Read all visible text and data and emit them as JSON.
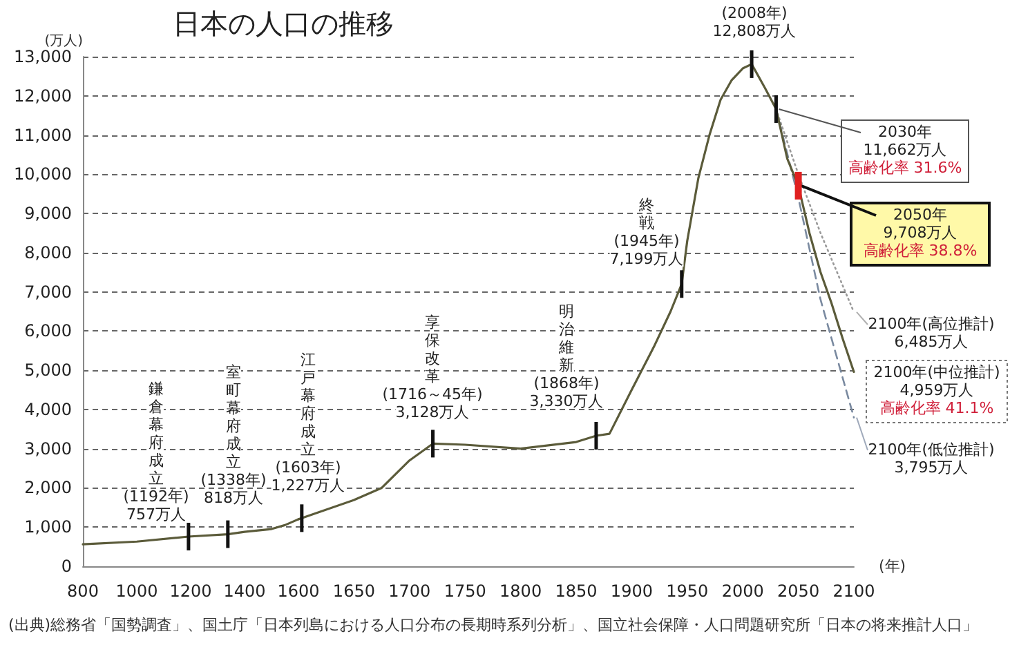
{
  "chart_data": [
    {
      "type": "line",
      "title": "日本の人口の推移",
      "ylabel": "(万人)",
      "xlim": [
        800,
        1600
      ],
      "xticks": [
        800,
        1000,
        1200,
        1400,
        1600
      ],
      "ylim": [
        0,
        13000
      ],
      "yticks": [
        0,
        {
          "value": 1000,
          "label": "1,000"
        },
        {
          "value": 2000,
          "label": "2,000"
        },
        {
          "value": 3000,
          "label": "3,000"
        },
        {
          "value": 4000,
          "label": "4,000"
        },
        {
          "value": 5000,
          "label": "5,000"
        },
        {
          "value": 6000,
          "label": "6,000"
        },
        {
          "value": 7000,
          "label": "7,000"
        },
        {
          "value": 8000,
          "label": "8,000"
        },
        {
          "value": 9000,
          "label": "9,000"
        },
        {
          "value": 10000,
          "label": "10,000"
        },
        {
          "value": 11000,
          "label": "11,000"
        },
        {
          "value": 12000,
          "label": "12,000"
        },
        {
          "value": 13000,
          "label": "13,000"
        }
      ],
      "grid": "y",
      "marker": "none",
      "series": [
        {
          "color": "#5b5b3a",
          "line_style": "solid",
          "x": [
            800,
            1000,
            1192,
            1338,
            1400,
            1500,
            1550,
            1600
          ],
          "values": [
            560,
            630,
            757,
            818,
            880,
            950,
            1050,
            1200
          ]
        }
      ],
      "annotations": [
        {
          "text": "鎌倉幕府成立\n(1192年)\n757万人",
          "x": 1192,
          "y": 757
        },
        {
          "text": "室町幕府成立\n(1338年)\n818万人",
          "x": 1338,
          "y": 818
        },
        "(出典)総務省「国勢調査」、国土庁「日本列島における人口分布の長期時系列分析」、国立社会保障・人口問題研究所「日本の将来推計人口」"
      ]
    },
    {
      "type": "line",
      "xlabel": "(年)",
      "xlim": [
        1600,
        2100
      ],
      "xticks": [
        1650,
        1700,
        1750,
        1800,
        1850,
        1900,
        1950,
        2000,
        2050,
        2100
      ],
      "ylim": [
        0,
        13000
      ],
      "yticks": [
        0,
        1000,
        2000,
        3000,
        4000,
        5000,
        6000,
        7000,
        8000,
        9000,
        10000,
        11000,
        12000,
        13000
      ],
      "tick_labels": "x",
      "grid": "y",
      "marker": "none",
      "series": [
        {
          "color": "#5b5b3a",
          "line_style": "solid",
          "x": [
            1600,
            1603,
            1650,
            1675,
            1700,
            1721,
            1750,
            1800,
            1850,
            1868,
            1880,
            1900,
            1920,
            1935,
            1945,
            1950,
            1960,
            1970,
            1980,
            1990,
            2000,
            2008,
            2020,
            2030,
            2040,
            2050,
            2060,
            2070,
            2080,
            2090,
            2100
          ],
          "values": [
            1200,
            1227,
            1690,
            2000,
            2700,
            3128,
            3100,
            3000,
            3170,
            3330,
            3380,
            4500,
            5600,
            6500,
            7199,
            8300,
            9900,
            11000,
            11900,
            12400,
            12700,
            12808,
            12200,
            11662,
            10400,
            9708,
            8500,
            7500,
            6700,
            5800,
            4959
          ]
        },
        {
          "color": "#9a9a9a",
          "line_style": "dotted",
          "x": [
            2030,
            2050,
            2070,
            2100
          ],
          "values": [
            11662,
            10000,
            8500,
            6485
          ]
        },
        {
          "color": "#7a8aa0",
          "line_style": "dashed",
          "x": [
            2030,
            2050,
            2070,
            2100
          ],
          "values": [
            11662,
            9400,
            6800,
            3795
          ]
        }
      ],
      "annotations": [
        {
          "text": "江戸幕府成立\n(1603年)\n1,227万人",
          "x": 1603,
          "y": 1227
        },
        {
          "text": "享保改革\n(1716～45年)\n3,128万人",
          "x": 1721,
          "y": 3128
        },
        {
          "text": "明治維新\n(1868年)\n3,330万人",
          "x": 1868,
          "y": 3330
        },
        {
          "text": "終戦\n(1945年)\n7,199万人",
          "x": 1945,
          "y": 7199
        },
        {
          "text": "(2008年)\n12,808万人",
          "x": 2008,
          "y": 12808
        },
        {
          "text": "2030年\n11,662万人",
          "x": 2030,
          "y": 11662
        },
        "高齢化率 31.6%",
        {
          "text": "2050年\n9,708万人",
          "x": 2050,
          "y": 9708
        },
        "高齢化率 38.8%",
        {
          "text": "2100年(高位推計)\n6,485万人",
          "x": 2100,
          "y": 6485
        },
        {
          "text": "2100年(中位推計)\n4,959万人",
          "x": 2100,
          "y": 4959
        },
        "高齢化率 41.1%",
        {
          "text": "2100年(低位推計)\n3,795万人",
          "x": 2100,
          "y": 3795
        }
      ]
    }
  ]
}
